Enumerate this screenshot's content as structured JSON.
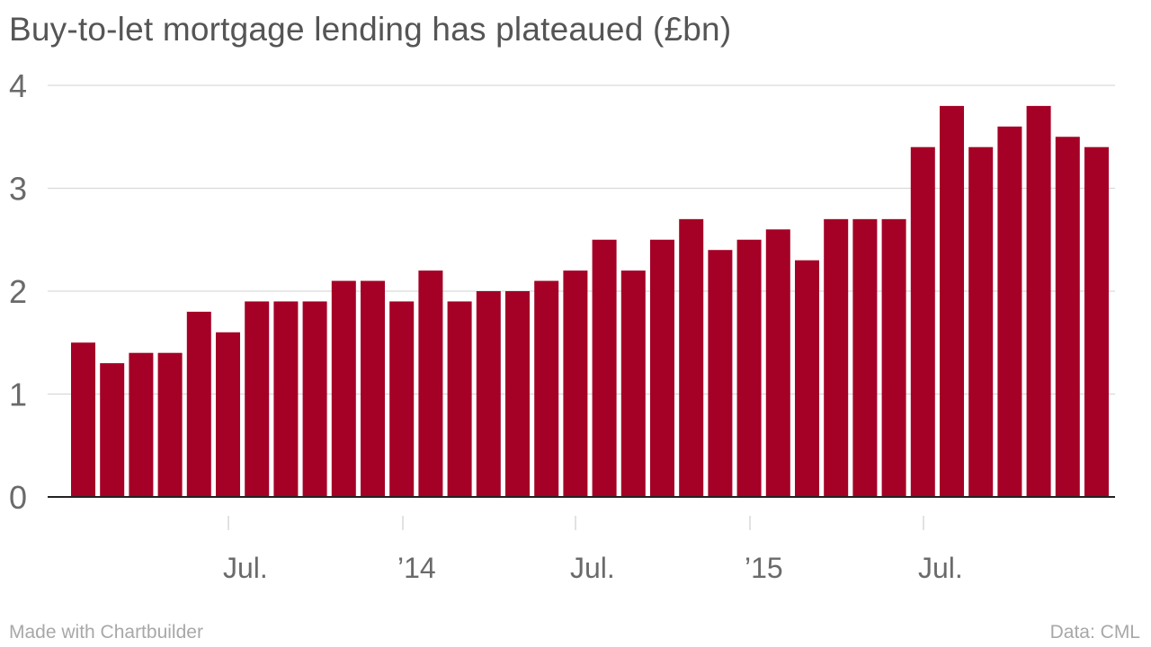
{
  "title": "Buy-to-let mortgage lending has plateaued (£bn)",
  "footer": {
    "made_with": "Made with Chartbuilder",
    "source": "Data: CML"
  },
  "colors": {
    "bar": "#a50026",
    "grid": "#d9d9d9",
    "axis": "#222222",
    "text": "#555555"
  },
  "chart_data": {
    "type": "bar",
    "title": "Buy-to-let mortgage lending has plateaued (£bn)",
    "xlabel": "",
    "ylabel": "",
    "ylim": [
      0,
      4
    ],
    "yticks": [
      0,
      1,
      2,
      3,
      4
    ],
    "grid": true,
    "categories": [
      "2013-01",
      "2013-02",
      "2013-03",
      "2013-04",
      "2013-05",
      "2013-06",
      "2013-07",
      "2013-08",
      "2013-09",
      "2013-10",
      "2013-11",
      "2013-12",
      "2014-01",
      "2014-02",
      "2014-03",
      "2014-04",
      "2014-05",
      "2014-06",
      "2014-07",
      "2014-08",
      "2014-09",
      "2014-10",
      "2014-11",
      "2014-12",
      "2015-01",
      "2015-02",
      "2015-03",
      "2015-04",
      "2015-05",
      "2015-06",
      "2015-07",
      "2015-08",
      "2015-09",
      "2015-10",
      "2015-11",
      "2015-12"
    ],
    "values": [
      1.5,
      1.3,
      1.4,
      1.4,
      1.8,
      1.6,
      1.9,
      1.9,
      1.9,
      2.1,
      2.1,
      1.9,
      2.2,
      1.9,
      2.0,
      2.0,
      2.1,
      2.2,
      2.5,
      2.2,
      2.5,
      2.7,
      2.4,
      2.5,
      2.6,
      2.3,
      2.7,
      2.7,
      2.7,
      3.4,
      3.8,
      3.4,
      3.6,
      3.8,
      3.5,
      3.4
    ],
    "x_tick_labels": [
      {
        "category": "2013-07",
        "label": "Jul."
      },
      {
        "category": "2014-01",
        "label": "’14"
      },
      {
        "category": "2014-07",
        "label": "Jul."
      },
      {
        "category": "2015-01",
        "label": "’15"
      },
      {
        "category": "2015-07",
        "label": "Jul."
      }
    ]
  }
}
